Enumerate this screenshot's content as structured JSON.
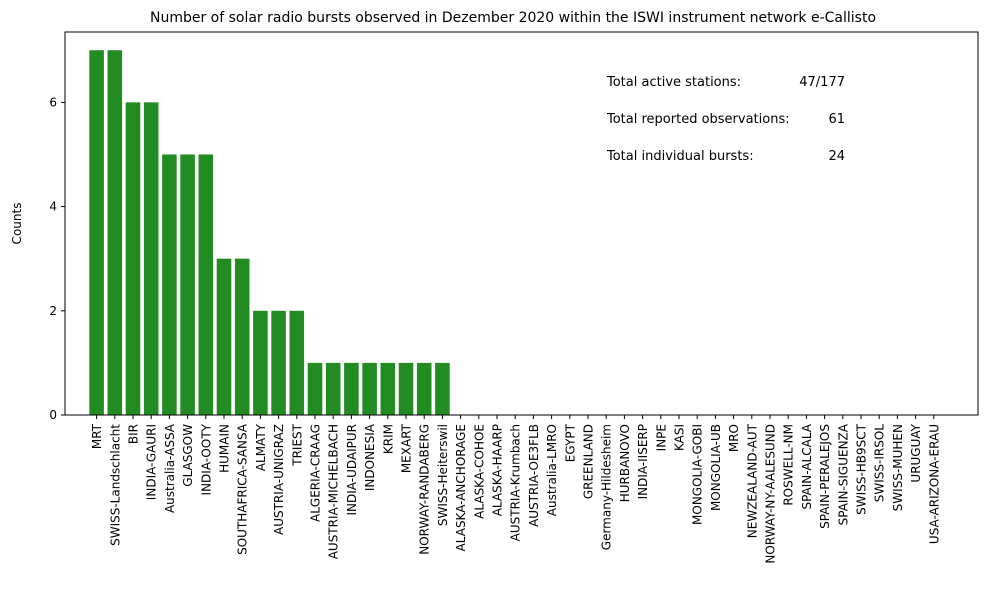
{
  "chart_data": {
    "type": "bar",
    "title": "Number of solar radio bursts observed in Dezember 2020 within the ISWI instrument network e-Callisto",
    "xlabel": "",
    "ylabel": "Counts",
    "ylim": [
      0,
      7.35
    ],
    "yticks": [
      0,
      2,
      4,
      6
    ],
    "bar_color": "#228b22",
    "grid": false,
    "categories": [
      "MRT",
      "SWISS-Landschlacht",
      "BIR",
      "INDIA-GAURI",
      "Australia-ASSA",
      "GLASGOW",
      "INDIA-OOTY",
      "HUMAIN",
      "SOUTHAFRICA-SANSA",
      "ALMATY",
      "AUSTRIA-UNIGRAZ",
      "TRIEST",
      "ALGERIA-CRAAG",
      "AUSTRIA-MICHELBACH",
      "INDIA-UDAIPUR",
      "INDONESIA",
      "KRIM",
      "MEXART",
      "NORWAY-RANDABERG",
      "SWISS-Heiterswil",
      "ALASKA-ANCHORAGE",
      "ALASKA-COHOE",
      "ALASKA-HAARP",
      "AUSTRIA-Krumbach",
      "AUSTRIA-OE3FLB",
      "Australia-LMRO",
      "EGYPT",
      "GREENLAND",
      "Germany-Hildesheim",
      "HURBANOVO",
      "INDIA-IISERP",
      "INPE",
      "KASI",
      "MONGOLIA-GOBI",
      "MONGOLIA-UB",
      "MRO",
      "NEWZEALAND-AUT",
      "NORWAY-NY-AALESUND",
      "ROSWELL-NM",
      "SPAIN-ALCALA",
      "SPAIN-PERALEJOS",
      "SPAIN-SIGUENZA",
      "SWISS-HB9SCT",
      "SWISS-IRSOL",
      "SWISS-MUHEN",
      "URUGUAY",
      "USA-ARIZONA-ERAU"
    ],
    "values": [
      7,
      7,
      6,
      6,
      5,
      5,
      5,
      3,
      3,
      2,
      2,
      2,
      1,
      1,
      1,
      1,
      1,
      1,
      1,
      1,
      0,
      0,
      0,
      0,
      0,
      0,
      0,
      0,
      0,
      0,
      0,
      0,
      0,
      0,
      0,
      0,
      0,
      0,
      0,
      0,
      0,
      0,
      0,
      0,
      0,
      0,
      0
    ],
    "annotations": [
      {
        "label": "Total active stations:",
        "value": "47/177"
      },
      {
        "label": "Total reported observations:",
        "value": "61"
      },
      {
        "label": "Total individual bursts:",
        "value": "24"
      }
    ]
  }
}
